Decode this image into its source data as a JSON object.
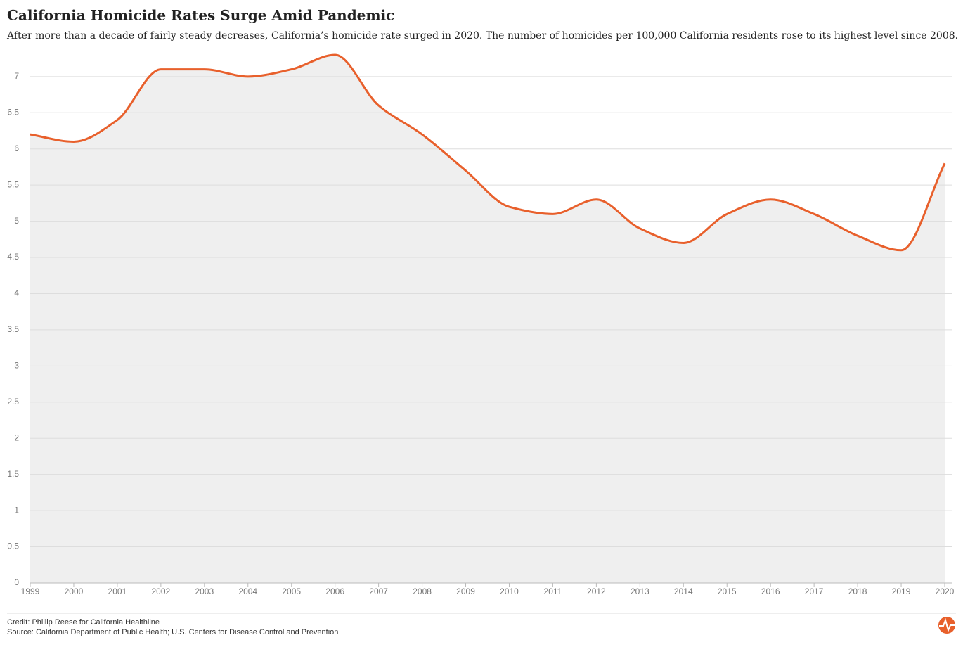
{
  "chart_data": {
    "type": "area",
    "title": "California Homicide Rates Surge Amid Pandemic",
    "subtitle": "After more than a decade of fairly steady decreases, California’s homicide rate surged in 2020. The number of homicides per 100,000 California residents rose to its highest level since 2008.",
    "credit": "Credit: Phillip Reese for California Healthline",
    "source": "Source: California Department of Public Health; U.S. Centers for Disease Control and Prevention",
    "x": [
      1999,
      2000,
      2001,
      2002,
      2003,
      2004,
      2005,
      2006,
      2007,
      2008,
      2009,
      2010,
      2011,
      2012,
      2013,
      2014,
      2015,
      2016,
      2017,
      2018,
      2019,
      2020
    ],
    "values": [
      6.2,
      6.1,
      6.4,
      7.1,
      7.1,
      7.0,
      7.1,
      7.3,
      6.6,
      6.2,
      5.7,
      5.2,
      5.1,
      5.3,
      4.9,
      4.7,
      5.1,
      5.3,
      5.1,
      4.8,
      4.6,
      5.8
    ],
    "color": "#e8602c",
    "area_color": "#efefef",
    "xlim": [
      1999,
      2020
    ],
    "xticks": [
      1999,
      2000,
      2001,
      2002,
      2003,
      2004,
      2005,
      2006,
      2007,
      2008,
      2009,
      2010,
      2011,
      2012,
      2013,
      2014,
      2015,
      2016,
      2017,
      2018,
      2019,
      2020
    ],
    "ylim": [
      0,
      7.3
    ],
    "yticks": [
      0,
      0.5,
      1,
      1.5,
      2,
      2.5,
      3,
      3.5,
      4,
      4.5,
      5,
      5.5,
      6,
      6.5,
      7
    ],
    "grid": true
  }
}
